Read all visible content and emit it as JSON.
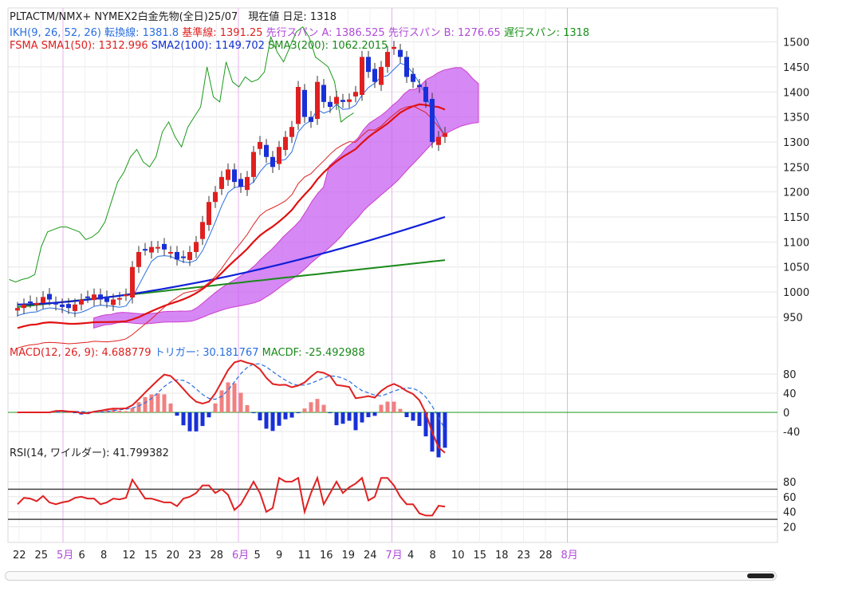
{
  "header": {
    "line1": "PLTACTM/NMX+ NYMEX2白金先物(全日)25/07　現在値 日足: 1318",
    "ikh_label": "IKH(9, 26, 52, 26)",
    "ikh_tenkan": "転換線: 1381.8",
    "ikh_kijun": "基準線: 1391.25",
    "ikh_spanA": "先行スパン A: 1386.525",
    "ikh_spanB": "先行スパン B: 1276.65",
    "ikh_chikou": "遅行スパン: 1318",
    "fsma_label": "FSMA",
    "sma1": "SMA1(50): 1312.996",
    "sma2": "SMA2(100): 1149.702",
    "sma3": "SMA3(200): 1062.2015",
    "macd_label": "MACD(12, 26, 9): 4.688779",
    "macd_trigger": "トリガー: 30.181767",
    "macd_diff": "MACDF: -25.492988",
    "rsi_label": "RSI(14, ワイルダー): 41.799382"
  },
  "colors": {
    "up": "#e02020",
    "down": "#1830d8",
    "tenkan": "#2a6ee0",
    "kijun": "#e02020",
    "cloud": "#c860f0",
    "chikou": "#1a9a1a",
    "sma1": "#e01010",
    "sma2": "#1020d8",
    "sma3": "#1a8a1a",
    "grid": "#e6e6e6",
    "month_line": "#e8b0f0"
  },
  "chart_data": [
    {
      "type": "candlestick",
      "panel": "price",
      "ylim": [
        930,
        1520
      ],
      "yticks": [
        950,
        1000,
        1050,
        1100,
        1150,
        1200,
        1250,
        1300,
        1350,
        1400,
        1450,
        1500
      ],
      "month_markers": [
        "5月",
        "6月",
        "7月",
        "8月"
      ],
      "x_labels": [
        "22",
        "25",
        "5月",
        "6",
        "8",
        "12",
        "15",
        "20",
        "23",
        "28",
        "6月",
        "5",
        "9",
        "11",
        "16",
        "19",
        "24",
        "7月",
        "4",
        "8",
        "10",
        "15",
        "18",
        "23",
        "28",
        "8月"
      ],
      "close": [
        968,
        975,
        980,
        978,
        990,
        985,
        975,
        970,
        968,
        975,
        985,
        990,
        995,
        985,
        980,
        985,
        988,
        995,
        1050,
        1080,
        1085,
        1090,
        1090,
        1085,
        1080,
        1065,
        1070,
        1080,
        1100,
        1140,
        1180,
        1200,
        1230,
        1245,
        1220,
        1210,
        1230,
        1280,
        1300,
        1270,
        1250,
        1290,
        1310,
        1330,
        1410,
        1350,
        1340,
        1420,
        1380,
        1370,
        1390,
        1380,
        1385,
        1400,
        1470,
        1440,
        1420,
        1450,
        1480,
        1490,
        1470,
        1430,
        1420,
        1410,
        1380,
        1300,
        1310,
        1318
      ],
      "tenkan_last": 1381.8,
      "kijun_last": 1391.25,
      "spanA_last": 1386.525,
      "spanB_last": 1276.65,
      "chikou_last": 1318,
      "sma1_last": 1312.996,
      "sma2_last": 1149.702,
      "sma3_last": 1062.2015
    },
    {
      "type": "bar+line",
      "panel": "macd",
      "ylim": [
        -55,
        95
      ],
      "yticks": [
        80,
        40,
        0,
        -40
      ],
      "macd_last": 4.688779,
      "trigger_last": 30.181767,
      "macdf_last": -25.492988
    },
    {
      "type": "line",
      "panel": "rsi",
      "ylim": [
        10,
        100
      ],
      "yticks": [
        80,
        60,
        40,
        20
      ],
      "bands": [
        70,
        30
      ],
      "rsi_last": 41.799382
    }
  ]
}
